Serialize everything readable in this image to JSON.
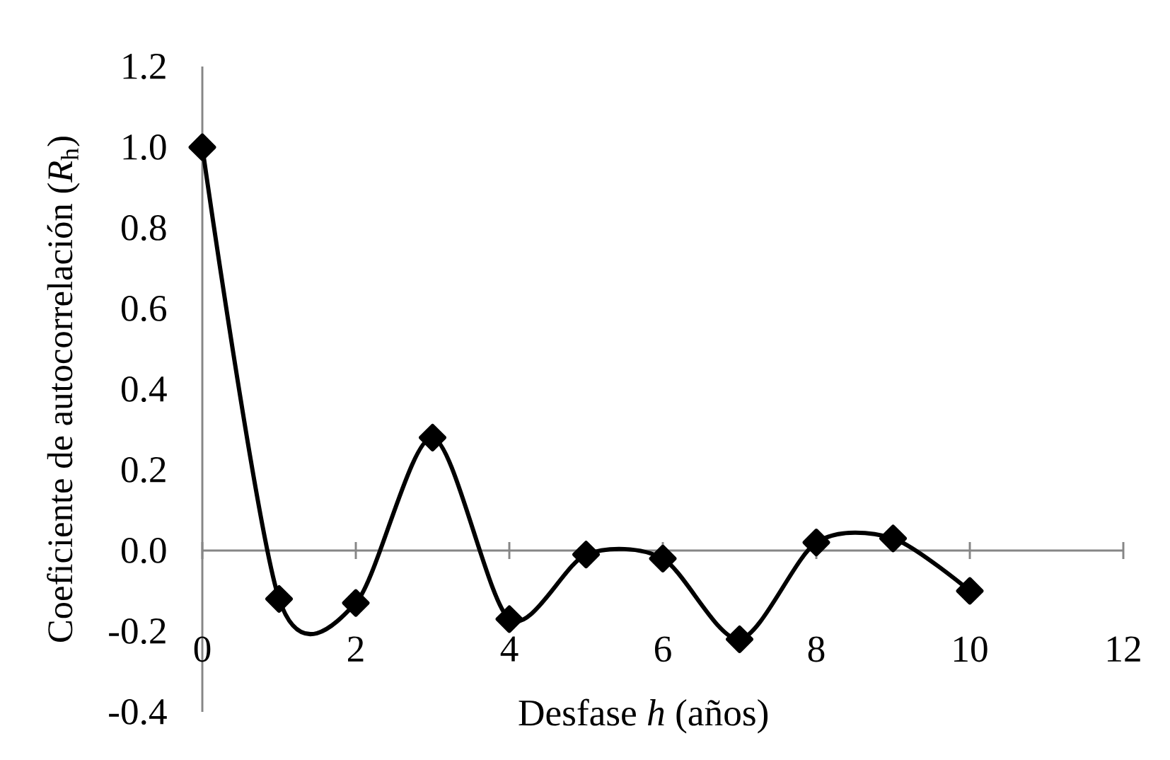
{
  "chart_data": {
    "type": "line",
    "xlabel": "Desfase *h* (años)",
    "ylabel": "Coeficiente de autocorrelación (*R*$_{h}$)",
    "x": [
      0,
      1,
      2,
      3,
      4,
      5,
      6,
      7,
      8,
      9,
      10
    ],
    "values": [
      1.0,
      -0.12,
      -0.13,
      0.28,
      -0.17,
      -0.01,
      -0.02,
      -0.22,
      0.02,
      0.03,
      -0.1
    ],
    "color": "#000000",
    "marker": "diamond",
    "line_style": "solid",
    "xlim": [
      0,
      12
    ],
    "xticks": [
      0,
      2,
      4,
      6,
      8,
      10,
      12
    ],
    "ylim": [
      -0.4,
      1.2
    ],
    "yticks": [
      {
        "value": -0.4,
        "label": "-0.4"
      },
      {
        "value": -0.2,
        "label": "-0.2"
      },
      {
        "value": 0,
        "label": "0.0"
      },
      {
        "value": 0.2,
        "label": "0.2"
      },
      {
        "value": 0.4,
        "label": "0.4"
      },
      {
        "value": 0.6,
        "label": "0.6"
      },
      {
        "value": 0.8,
        "label": "0.8"
      },
      {
        "value": 1.0,
        "label": "1.0"
      },
      {
        "value": 1.2,
        "label": "1.2"
      }
    ]
  }
}
